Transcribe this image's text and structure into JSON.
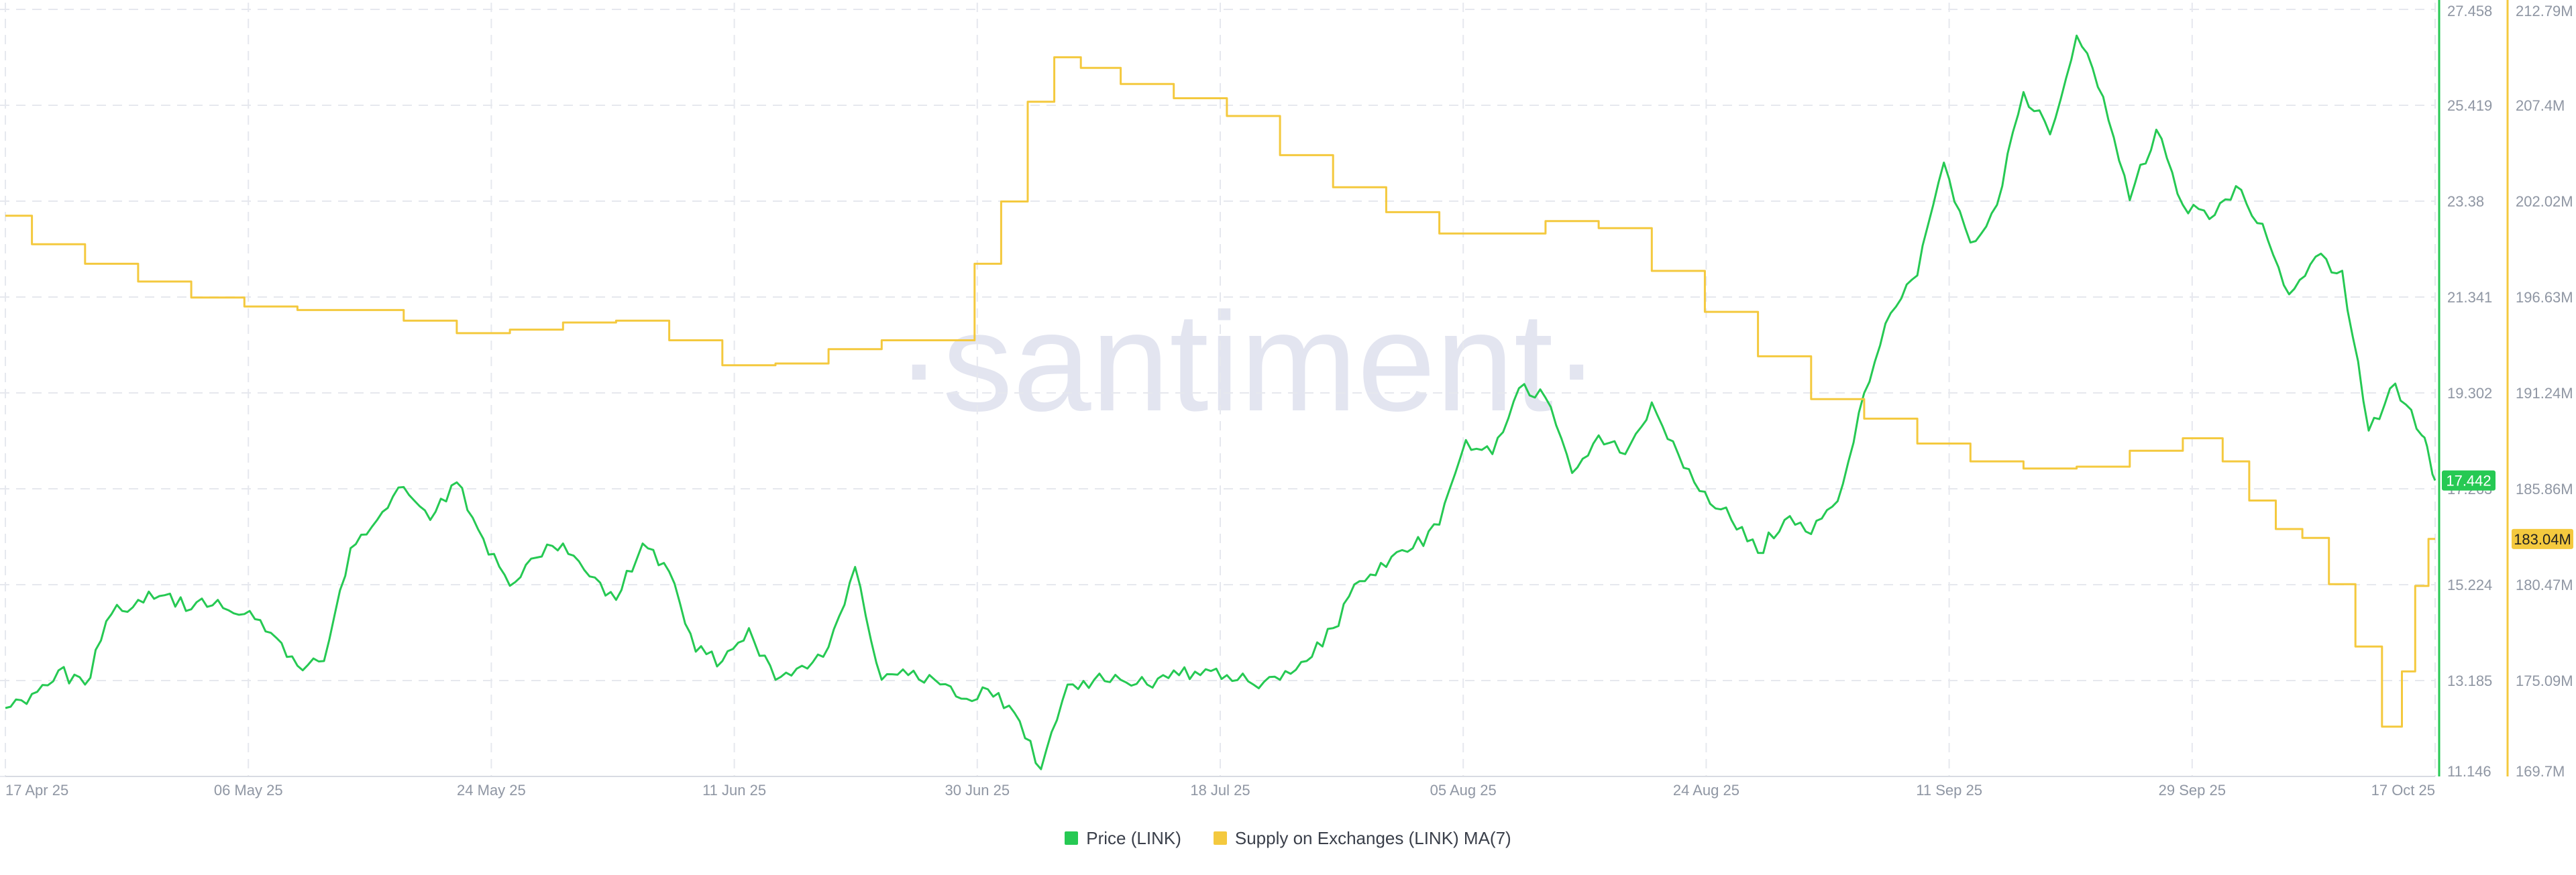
{
  "watermark": "·santiment·",
  "legend": {
    "price_label": "Price (LINK)",
    "supply_label": "Supply on Exchanges (LINK) MA(7)"
  },
  "colors": {
    "price": "#26c953",
    "supply": "#f4c93e",
    "grid": "#e6e8ee",
    "axis_text": "#8f96a3",
    "watermark": "#e3e5f0"
  },
  "chart_data": {
    "type": "line",
    "title": "",
    "x": [
      "17 Apr 25",
      "06 May 25",
      "24 May 25",
      "11 Jun 25",
      "30 Jun 25",
      "18 Jul 25",
      "05 Aug 25",
      "24 Aug 25",
      "11 Sep 25",
      "29 Sep 25",
      "17 Oct 25"
    ],
    "xlim": [
      "2025-04-17",
      "2025-10-17"
    ],
    "grid": true,
    "legend_position": "bottom-center",
    "y_left": {
      "label": "",
      "ticks": [
        "27.458",
        "25.419",
        "23.38",
        "21.341",
        "19.302",
        "17.263",
        "15.224",
        "13.185",
        "11.146"
      ],
      "ylim": [
        11.146,
        27.458
      ]
    },
    "y_right": {
      "label": "",
      "ticks": [
        "212.79M",
        "207.4M",
        "202.02M",
        "196.63M",
        "191.24M",
        "185.86M",
        "180.47M",
        "175.09M",
        "169.7M"
      ],
      "ylim": [
        169.7,
        212.79
      ],
      "unit": "M"
    },
    "series": [
      {
        "name": "Price (LINK)",
        "axis": "left",
        "last_value_label": "17.442",
        "points": [
          [
            "2025-04-17",
            12.6
          ],
          [
            "2025-04-19",
            12.9
          ],
          [
            "2025-04-21",
            13.4
          ],
          [
            "2025-04-23",
            13.1
          ],
          [
            "2025-04-25",
            14.6
          ],
          [
            "2025-04-27",
            14.9
          ],
          [
            "2025-04-29",
            15.0
          ],
          [
            "2025-05-01",
            14.7
          ],
          [
            "2025-05-03",
            14.9
          ],
          [
            "2025-05-05",
            14.6
          ],
          [
            "2025-05-07",
            14.2
          ],
          [
            "2025-05-09",
            13.5
          ],
          [
            "2025-05-11",
            13.6
          ],
          [
            "2025-05-13",
            16.0
          ],
          [
            "2025-05-15",
            16.6
          ],
          [
            "2025-05-17",
            17.3
          ],
          [
            "2025-05-19",
            16.6
          ],
          [
            "2025-05-21",
            17.4
          ],
          [
            "2025-05-23",
            16.2
          ],
          [
            "2025-05-25",
            15.2
          ],
          [
            "2025-05-27",
            15.8
          ],
          [
            "2025-05-29",
            16.1
          ],
          [
            "2025-05-31",
            15.4
          ],
          [
            "2025-06-02",
            14.9
          ],
          [
            "2025-06-04",
            16.1
          ],
          [
            "2025-06-06",
            15.5
          ],
          [
            "2025-06-08",
            13.8
          ],
          [
            "2025-06-10",
            13.6
          ],
          [
            "2025-06-12",
            14.3
          ],
          [
            "2025-06-14",
            13.2
          ],
          [
            "2025-06-16",
            13.5
          ],
          [
            "2025-06-18",
            13.9
          ],
          [
            "2025-06-20",
            15.6
          ],
          [
            "2025-06-22",
            13.2
          ],
          [
            "2025-06-24",
            13.3
          ],
          [
            "2025-06-26",
            13.2
          ],
          [
            "2025-06-28",
            12.8
          ],
          [
            "2025-06-30",
            13.0
          ],
          [
            "2025-07-02",
            12.5
          ],
          [
            "2025-07-04",
            11.3
          ],
          [
            "2025-07-06",
            13.1
          ],
          [
            "2025-07-08",
            13.2
          ],
          [
            "2025-07-10",
            13.2
          ],
          [
            "2025-07-12",
            13.1
          ],
          [
            "2025-07-14",
            13.4
          ],
          [
            "2025-07-16",
            13.3
          ],
          [
            "2025-07-18",
            13.3
          ],
          [
            "2025-07-20",
            13.1
          ],
          [
            "2025-07-22",
            13.2
          ],
          [
            "2025-07-24",
            13.6
          ],
          [
            "2025-07-26",
            14.3
          ],
          [
            "2025-07-28",
            15.3
          ],
          [
            "2025-07-30",
            15.6
          ],
          [
            "2025-08-01",
            16.0
          ],
          [
            "2025-08-03",
            16.5
          ],
          [
            "2025-08-05",
            18.3
          ],
          [
            "2025-08-07",
            18.0
          ],
          [
            "2025-08-09",
            19.4
          ],
          [
            "2025-08-11",
            19.2
          ],
          [
            "2025-08-13",
            17.6
          ],
          [
            "2025-08-15",
            18.4
          ],
          [
            "2025-08-17",
            18.0
          ],
          [
            "2025-08-19",
            19.1
          ],
          [
            "2025-08-21",
            18.0
          ],
          [
            "2025-08-23",
            17.2
          ],
          [
            "2025-08-25",
            16.6
          ],
          [
            "2025-08-27",
            15.9
          ],
          [
            "2025-08-29",
            16.6
          ],
          [
            "2025-08-31",
            16.3
          ],
          [
            "2025-09-02",
            17.0
          ],
          [
            "2025-09-04",
            19.3
          ],
          [
            "2025-09-06",
            21.0
          ],
          [
            "2025-09-08",
            21.8
          ],
          [
            "2025-09-10",
            24.2
          ],
          [
            "2025-09-12",
            22.5
          ],
          [
            "2025-09-14",
            23.3
          ],
          [
            "2025-09-16",
            25.7
          ],
          [
            "2025-09-18",
            24.8
          ],
          [
            "2025-09-20",
            26.9
          ],
          [
            "2025-09-22",
            25.6
          ],
          [
            "2025-09-24",
            23.4
          ],
          [
            "2025-09-26",
            24.9
          ],
          [
            "2025-09-28",
            23.3
          ],
          [
            "2025-09-30",
            23.0
          ],
          [
            "2025-10-02",
            23.7
          ],
          [
            "2025-10-04",
            22.9
          ],
          [
            "2025-10-06",
            21.4
          ],
          [
            "2025-10-08",
            22.2
          ],
          [
            "2025-10-10",
            21.9
          ],
          [
            "2025-10-12",
            18.5
          ],
          [
            "2025-10-14",
            19.5
          ],
          [
            "2025-10-16",
            18.4
          ],
          [
            "2025-10-17",
            17.44
          ]
        ]
      },
      {
        "name": "Supply on Exchanges (LINK) MA(7)",
        "axis": "right",
        "last_value_label": "183.04M",
        "points": [
          [
            "2025-04-17",
            201.2
          ],
          [
            "2025-04-21",
            199.6
          ],
          [
            "2025-04-25",
            198.5
          ],
          [
            "2025-04-29",
            197.5
          ],
          [
            "2025-05-03",
            196.6
          ],
          [
            "2025-05-07",
            196.1
          ],
          [
            "2025-05-11",
            195.9
          ],
          [
            "2025-05-15",
            195.9
          ],
          [
            "2025-05-19",
            195.3
          ],
          [
            "2025-05-23",
            194.6
          ],
          [
            "2025-05-27",
            194.8
          ],
          [
            "2025-05-31",
            195.2
          ],
          [
            "2025-06-04",
            195.3
          ],
          [
            "2025-06-08",
            194.2
          ],
          [
            "2025-06-12",
            192.8
          ],
          [
            "2025-06-16",
            192.9
          ],
          [
            "2025-06-20",
            193.7
          ],
          [
            "2025-06-24",
            194.2
          ],
          [
            "2025-06-28",
            194.2
          ],
          [
            "2025-06-30",
            198.5
          ],
          [
            "2025-07-02",
            202.0
          ],
          [
            "2025-07-04",
            207.6
          ],
          [
            "2025-07-06",
            210.1
          ],
          [
            "2025-07-08",
            209.5
          ],
          [
            "2025-07-12",
            208.6
          ],
          [
            "2025-07-16",
            207.8
          ],
          [
            "2025-07-20",
            206.8
          ],
          [
            "2025-07-24",
            204.6
          ],
          [
            "2025-07-28",
            202.8
          ],
          [
            "2025-08-01",
            201.4
          ],
          [
            "2025-08-05",
            200.2
          ],
          [
            "2025-08-09",
            200.2
          ],
          [
            "2025-08-13",
            200.9
          ],
          [
            "2025-08-17",
            200.5
          ],
          [
            "2025-08-21",
            198.1
          ],
          [
            "2025-08-25",
            195.8
          ],
          [
            "2025-08-29",
            193.3
          ],
          [
            "2025-09-02",
            190.9
          ],
          [
            "2025-09-06",
            189.8
          ],
          [
            "2025-09-10",
            188.4
          ],
          [
            "2025-09-14",
            187.4
          ],
          [
            "2025-09-18",
            187.0
          ],
          [
            "2025-09-22",
            187.1
          ],
          [
            "2025-09-26",
            188.0
          ],
          [
            "2025-09-30",
            188.7
          ],
          [
            "2025-10-02",
            187.4
          ],
          [
            "2025-10-04",
            185.2
          ],
          [
            "2025-10-06",
            183.6
          ],
          [
            "2025-10-08",
            183.1
          ],
          [
            "2025-10-10",
            180.5
          ],
          [
            "2025-10-12",
            177.0
          ],
          [
            "2025-10-14",
            172.5
          ],
          [
            "2025-10-15",
            175.6
          ],
          [
            "2025-10-16",
            180.4
          ],
          [
            "2025-10-17",
            183.04
          ]
        ]
      }
    ]
  }
}
